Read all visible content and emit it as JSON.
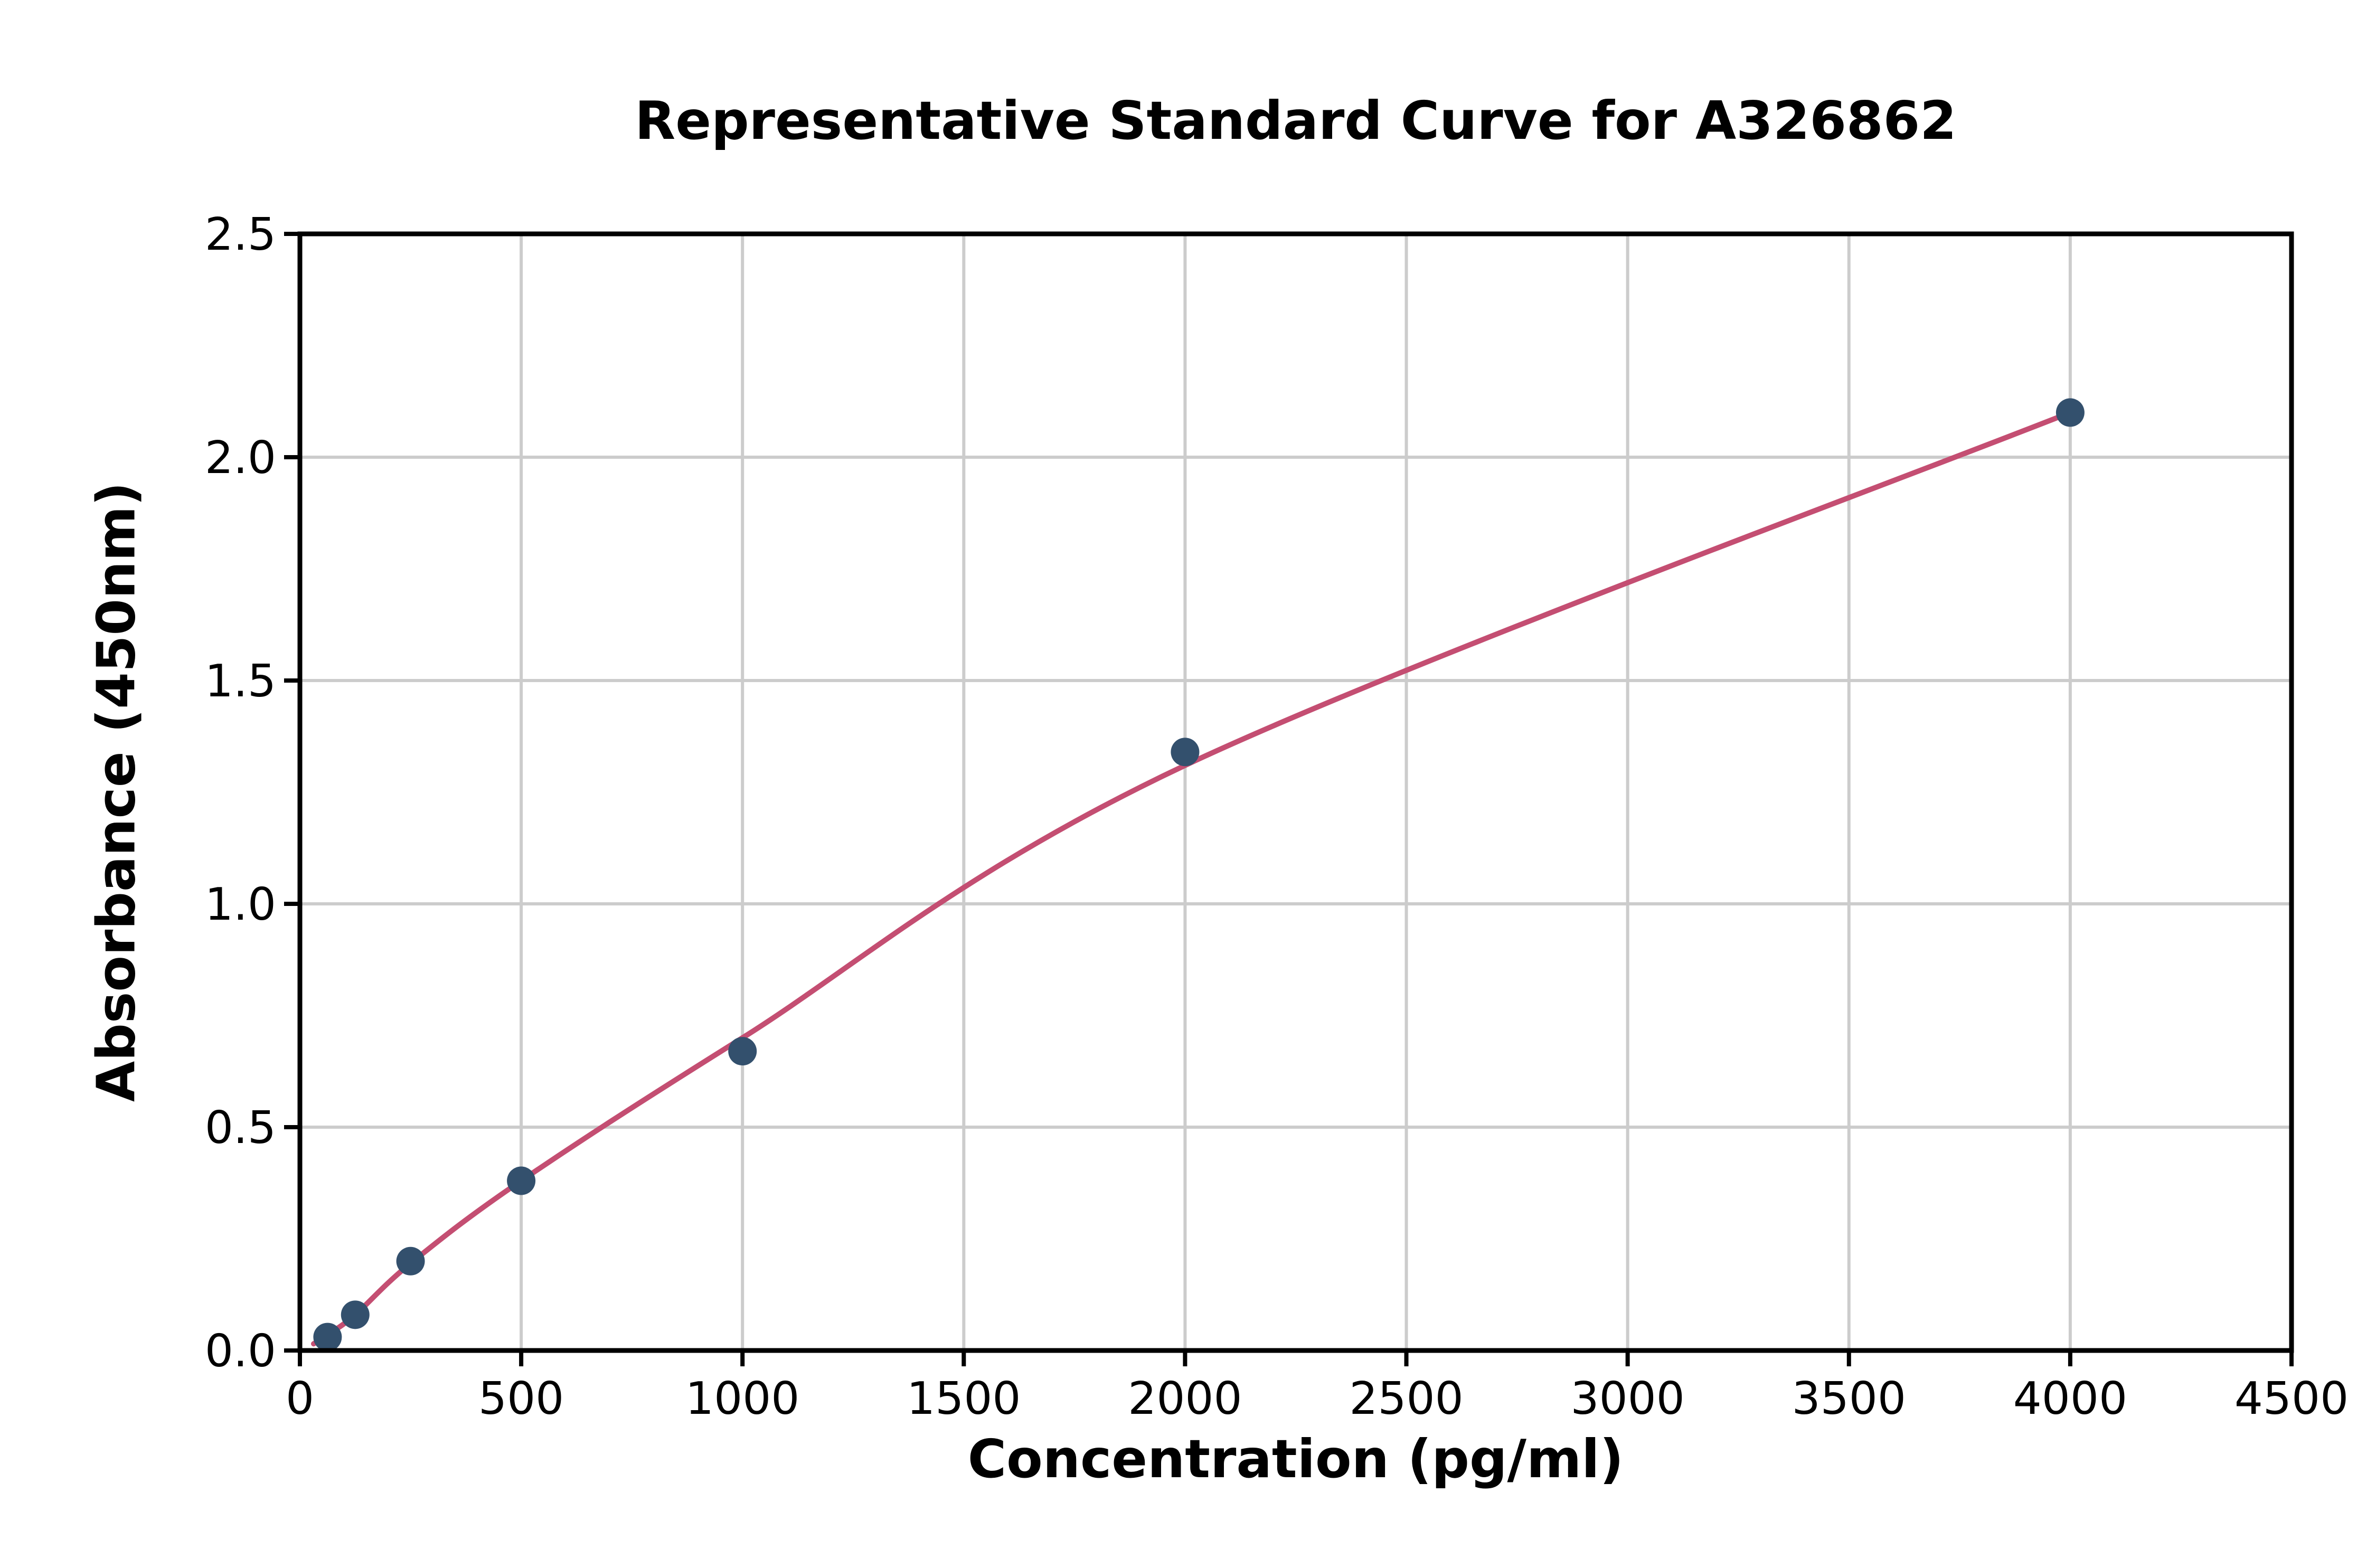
{
  "chart_data": {
    "type": "scatter",
    "title": "Representative Standard Curve for A326862",
    "xlabel": "Concentration (pg/ml)",
    "ylabel": "Absorbance (450nm)",
    "xlim": [
      0,
      4500
    ],
    "ylim": [
      0,
      2.5
    ],
    "x_ticks": [
      0,
      500,
      1000,
      1500,
      2000,
      2500,
      3000,
      3500,
      4000,
      4500
    ],
    "y_ticks": [
      0.0,
      0.5,
      1.0,
      1.5,
      2.0,
      2.5
    ],
    "grid": true,
    "legend": "none",
    "points": {
      "x": [
        62.5,
        125,
        250,
        500,
        1000,
        2000,
        4000
      ],
      "y": [
        0.03,
        0.08,
        0.2,
        0.38,
        0.67,
        1.34,
        2.1
      ]
    },
    "fit_curve": {
      "x": [
        31,
        62.5,
        125,
        250,
        500,
        1000,
        2000,
        4000
      ],
      "y": [
        0.015,
        0.035,
        0.08,
        0.195,
        0.38,
        0.7,
        1.31,
        2.1
      ]
    },
    "colors": {
      "point_color": "#33506d",
      "line_color": "#c44e72",
      "grid_color": "#cccccc",
      "axis_color": "#000000",
      "background": "#ffffff"
    }
  }
}
